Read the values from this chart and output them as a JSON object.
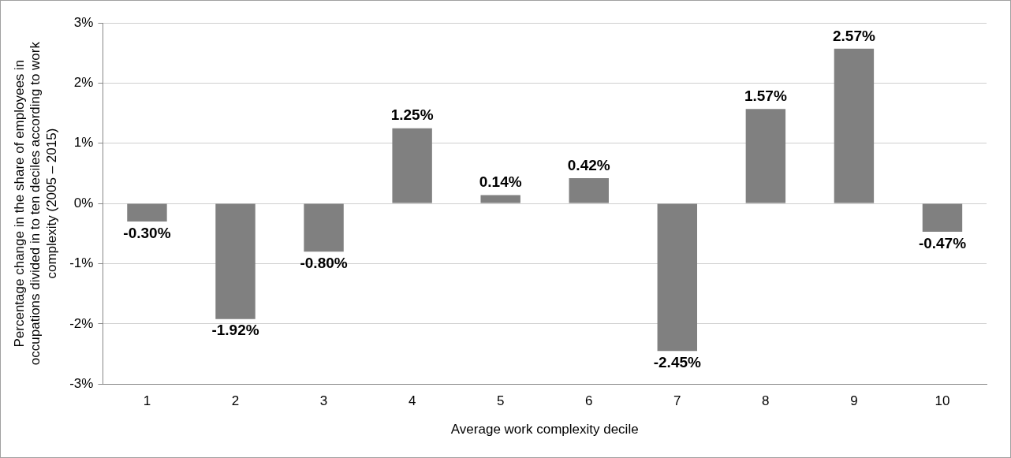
{
  "chart_data": {
    "type": "bar",
    "xlabel": "Average work complexity decile",
    "ylabel": "Percentage change in the share of employees in occupations divided in to ten deciles according to work complexity (2005 – 2015)",
    "categories": [
      "1",
      "2",
      "3",
      "4",
      "5",
      "6",
      "7",
      "8",
      "9",
      "10"
    ],
    "values": [
      -0.3,
      -1.92,
      -0.8,
      1.25,
      0.14,
      0.42,
      -2.45,
      1.57,
      2.57,
      -0.47
    ],
    "value_labels": [
      "-0.30%",
      "-1.92%",
      "-0.80%",
      "1.25%",
      "0.14%",
      "0.42%",
      "-2.45%",
      "1.57%",
      "2.57%",
      "-0.47%"
    ],
    "color": "#808080",
    "ylim": [
      -3,
      3
    ],
    "yticks": [
      {
        "value": -3,
        "label": "-3%"
      },
      {
        "value": -2,
        "label": "-2%"
      },
      {
        "value": -1,
        "label": "-1%"
      },
      {
        "value": 0,
        "label": "0%"
      },
      {
        "value": 1,
        "label": "1%"
      },
      {
        "value": 2,
        "label": "2%"
      },
      {
        "value": 3,
        "label": "3%"
      }
    ],
    "grid": "y",
    "legend": false
  }
}
